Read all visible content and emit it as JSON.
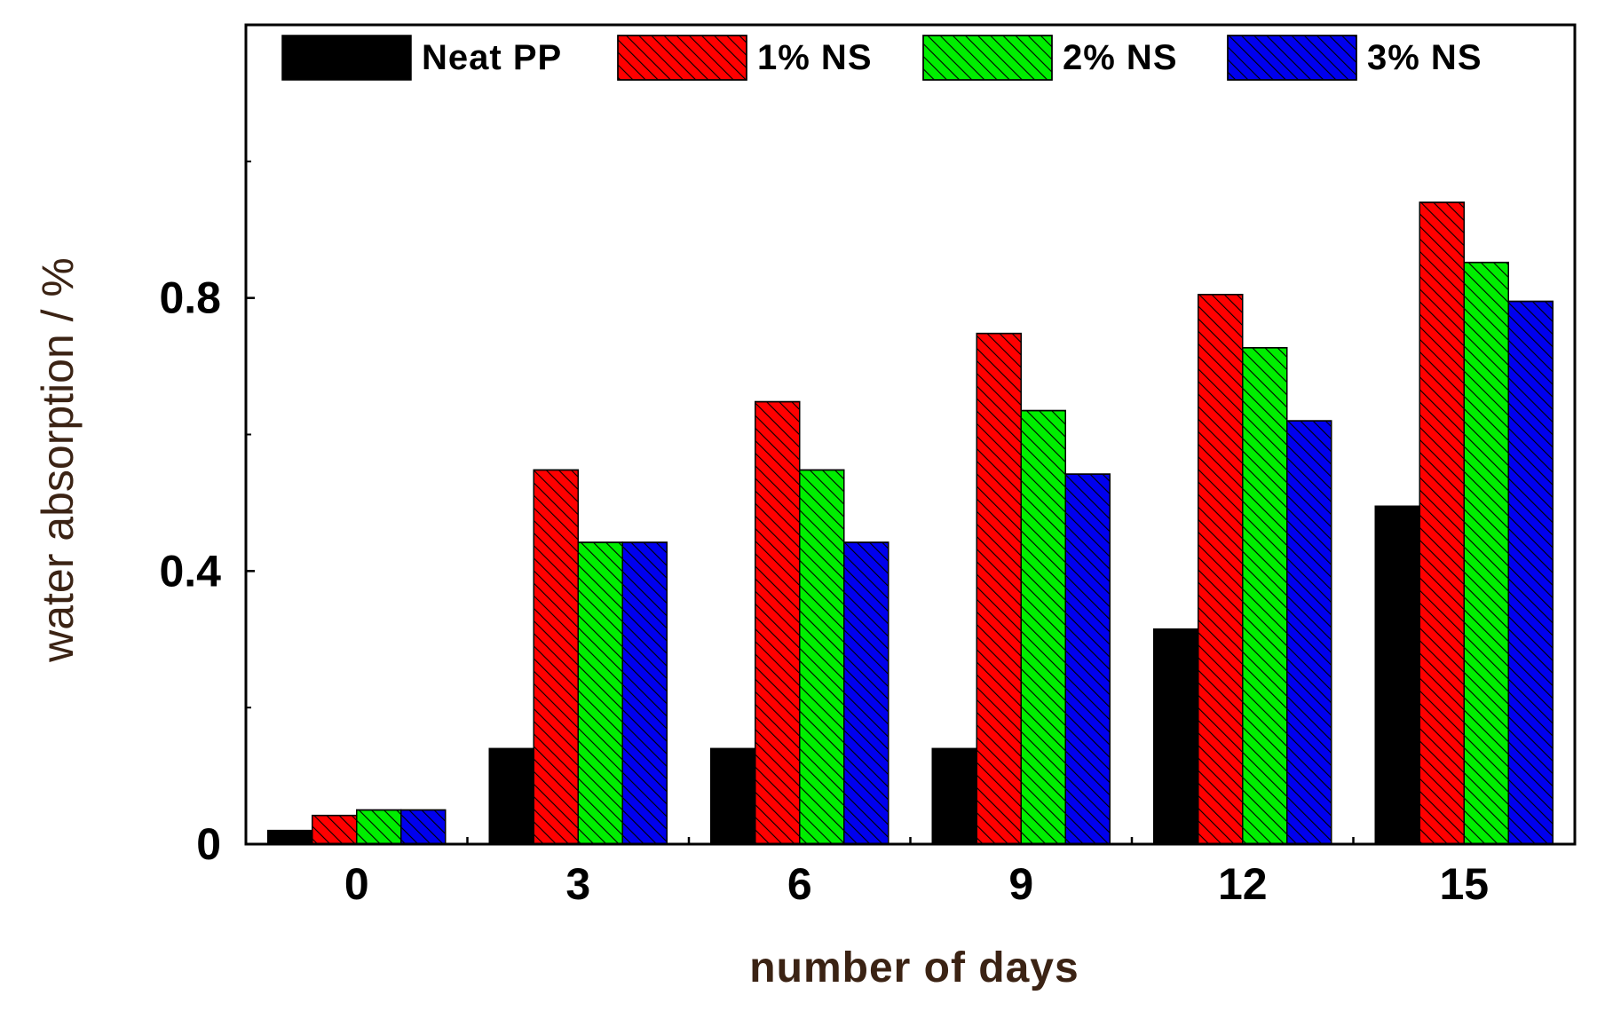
{
  "chart_data": {
    "type": "bar",
    "title": "",
    "xlabel": "number of days",
    "ylabel": "water absorption / %",
    "categories": [
      "0",
      "3",
      "6",
      "9",
      "12",
      "15"
    ],
    "ylim": [
      0,
      1.2
    ],
    "yticks": [
      0,
      0.4,
      0.8
    ],
    "ytick_labels": [
      "0",
      "0.4",
      "0.8"
    ],
    "grid": false,
    "legend_position": "top",
    "series": [
      {
        "name": "Neat PP",
        "color": "#000000",
        "hatch": false,
        "values": [
          0.02,
          0.14,
          0.14,
          0.14,
          0.315,
          0.495
        ]
      },
      {
        "name": "1% NS",
        "color": "#ff0000",
        "hatch": true,
        "values": [
          0.042,
          0.548,
          0.648,
          0.748,
          0.805,
          0.94
        ]
      },
      {
        "name": "2% NS",
        "color": "#00ee00",
        "hatch": true,
        "values": [
          0.05,
          0.442,
          0.548,
          0.635,
          0.727,
          0.852
        ]
      },
      {
        "name": "3% NS",
        "color": "#0000ee",
        "hatch": true,
        "values": [
          0.05,
          0.442,
          0.442,
          0.542,
          0.62,
          0.795
        ]
      }
    ]
  }
}
